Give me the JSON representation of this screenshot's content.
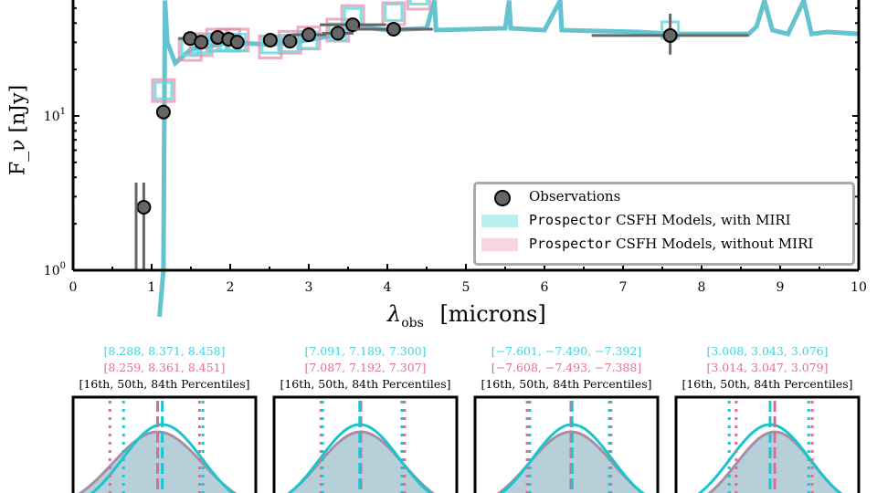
{
  "chart_data": [
    {
      "type": "scatter",
      "xlabel": "λ_obs [microns]",
      "xlabel_main": "λ",
      "xlabel_sub": "obs",
      "xlabel_unit": "[microns]",
      "ylabel": "F_ν [nJy]",
      "ylabel_main": "F",
      "ylabel_sub": "ν",
      "ylabel_unit": "[nJy]",
      "xlim": [
        0,
        10
      ],
      "ylim": [
        1,
        56
      ],
      "yscale": "log",
      "xticks": [
        "0",
        "1",
        "2",
        "3",
        "4",
        "5",
        "6",
        "7",
        "8",
        "9",
        "10"
      ],
      "yticks": [
        {
          "value": 1,
          "label": "10",
          "exp": "0"
        },
        {
          "value": 10,
          "label": "10",
          "exp": "1"
        }
      ],
      "legend_position": "lower-right",
      "legend": [
        {
          "marker": "circle",
          "label": "Observations",
          "color": "#666666"
        },
        {
          "marker": "patch",
          "prefix": "Prospector",
          "label": " CSFH Models, with MIRI",
          "color": "#5fd9e0"
        },
        {
          "marker": "patch",
          "prefix": "Prospector",
          "label": " CSFH Models, without MIRI",
          "color": "#e68aa8"
        }
      ],
      "observations": [
        {
          "x": 0.9,
          "y": 2.56,
          "xerr": 0.08,
          "ylo": 1.0,
          "yhi": 3.7
        },
        {
          "x": 1.15,
          "y": 10.6
        },
        {
          "x": 1.49,
          "y": 31.8,
          "xerr": 0.15
        },
        {
          "x": 1.63,
          "y": 30.1
        },
        {
          "x": 1.84,
          "y": 32.3
        },
        {
          "x": 1.98,
          "y": 31.4
        },
        {
          "x": 2.09,
          "y": 30.1
        },
        {
          "x": 2.51,
          "y": 31.0
        },
        {
          "x": 2.76,
          "y": 30.5
        },
        {
          "x": 3.0,
          "y": 33.6,
          "xerr": 0.22
        },
        {
          "x": 3.37,
          "y": 34.4,
          "xerr": 0.2
        },
        {
          "x": 3.56,
          "y": 39.0,
          "xerr": 0.42
        },
        {
          "x": 4.08,
          "y": 36.5,
          "xerr": 0.5
        },
        {
          "x": 7.6,
          "y": 33.2,
          "xerr": 1.0,
          "ylo": 25,
          "yhi": 46
        }
      ],
      "model_with_miri": [
        [
          1.15,
          14.6
        ],
        [
          1.49,
          28
        ],
        [
          1.63,
          29
        ],
        [
          1.84,
          30
        ],
        [
          1.98,
          30
        ],
        [
          2.09,
          30
        ],
        [
          2.51,
          29
        ],
        [
          2.76,
          29.5
        ],
        [
          3.0,
          31
        ],
        [
          3.37,
          35
        ],
        [
          3.56,
          44
        ],
        [
          4.08,
          47
        ],
        [
          4.4,
          60
        ],
        [
          7.6,
          36
        ]
      ],
      "model_without_miri": [
        [
          1.15,
          14.6
        ],
        [
          1.49,
          27
        ],
        [
          1.63,
          29
        ],
        [
          1.84,
          31
        ],
        [
          1.98,
          31
        ],
        [
          2.09,
          31
        ],
        [
          2.51,
          28
        ],
        [
          2.76,
          30
        ],
        [
          3.0,
          32
        ],
        [
          3.37,
          36
        ],
        [
          3.56,
          44
        ],
        [
          4.08,
          46
        ],
        [
          4.4,
          58
        ]
      ],
      "colors": {
        "with_miri": "#5fd9e0",
        "without_miri": "#e68aa8",
        "spectrum": "#4ab8c8",
        "obs": "#666666"
      }
    },
    {
      "type": "area",
      "panels": [
        {
          "with_miri": "[8.288,  8.371,  8.458]",
          "without_miri": "[8.259,  8.361,  8.451]",
          "label": "[16th, 50th, 84th Percentiles]",
          "p_with": [
            8.288,
            8.371,
            8.458
          ],
          "p_without": [
            8.259,
            8.361,
            8.451
          ]
        },
        {
          "with_miri": "[7.091,  7.189,  7.300]",
          "without_miri": "[7.087,  7.192,  7.307]",
          "label": "[16th, 50th, 84th Percentiles]",
          "p_with": [
            7.091,
            7.189,
            7.3
          ],
          "p_without": [
            7.087,
            7.192,
            7.307
          ]
        },
        {
          "with_miri": "[−7.601,  −7.490,  −7.392]",
          "without_miri": "[−7.608,  −7.493,  −7.388]",
          "label": "[16th, 50th, 84th Percentiles]",
          "p_with": [
            -7.601,
            -7.49,
            -7.392
          ],
          "p_without": [
            -7.608,
            -7.493,
            -7.388
          ]
        },
        {
          "with_miri": "[3.008,  3.043,  3.076]",
          "without_miri": "[3.014,  3.047,  3.079]",
          "label": "[16th, 50th, 84th Percentiles]",
          "p_with": [
            3.008,
            3.043,
            3.076
          ],
          "p_without": [
            3.014,
            3.047,
            3.079
          ]
        }
      ]
    }
  ]
}
